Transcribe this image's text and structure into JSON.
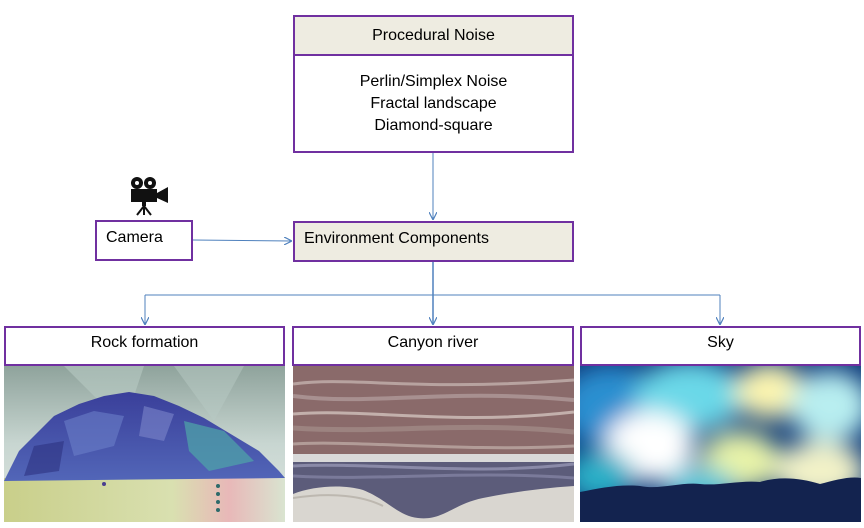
{
  "noise": {
    "title": "Procedural Noise",
    "items": [
      "Perlin/Simplex Noise",
      "Fractal landscape",
      "Diamond-square"
    ]
  },
  "camera": {
    "label": "Camera",
    "icon": "movie-camera-icon"
  },
  "environment": {
    "label": "Environment Components"
  },
  "components": [
    {
      "label": "Rock formation"
    },
    {
      "label": "Canyon river"
    },
    {
      "label": "Sky"
    }
  ],
  "colors": {
    "box_border": "#7030a0",
    "header_fill": "#eeece1",
    "arrow": "#4f81bd"
  }
}
